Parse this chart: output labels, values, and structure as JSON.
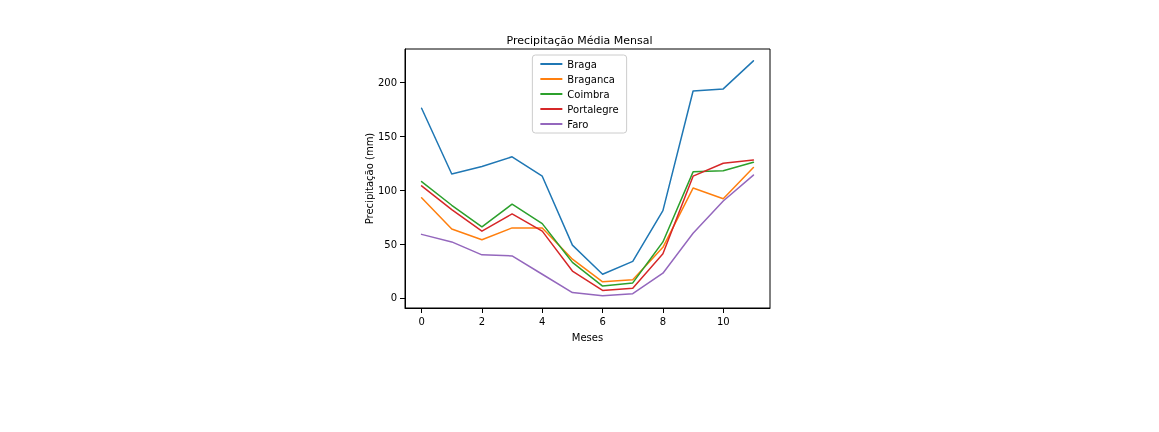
{
  "chart_data": {
    "type": "line",
    "title": "Precipitação Média Mensal",
    "xlabel": "Meses",
    "ylabel": "Precipitação (mm)",
    "x": [
      0,
      1,
      2,
      3,
      4,
      5,
      6,
      7,
      8,
      9,
      10,
      11
    ],
    "xlim": [
      -0.55,
      11.55
    ],
    "xticks": [
      0,
      2,
      4,
      6,
      8,
      10
    ],
    "ylim": [
      -9.3,
      231
    ],
    "yticks": [
      0,
      50,
      100,
      150,
      200
    ],
    "grid": false,
    "legend": "top",
    "marker": "none",
    "line_style": "solid",
    "series": [
      {
        "name": "Braga",
        "color": "#1f77b4",
        "values": [
          176,
          115,
          122,
          131,
          113,
          49,
          22,
          34,
          81,
          192,
          194,
          220
        ]
      },
      {
        "name": "Braganca",
        "color": "#ff7f0e",
        "values": [
          93,
          64,
          54,
          65,
          65,
          36,
          15,
          17,
          47,
          102,
          92,
          121
        ]
      },
      {
        "name": "Coimbra",
        "color": "#2ca02c",
        "values": [
          108,
          86,
          66,
          87,
          69,
          33,
          11,
          14,
          52,
          117,
          118,
          126
        ]
      },
      {
        "name": "Portalegre",
        "color": "#d62728",
        "values": [
          104,
          82,
          62,
          78,
          62,
          25,
          7,
          9,
          41,
          113,
          125,
          128
        ]
      },
      {
        "name": "Faro",
        "color": "#9467bd",
        "values": [
          59,
          52,
          40,
          39,
          22,
          5,
          2,
          4,
          23,
          60,
          90,
          114
        ]
      }
    ]
  }
}
